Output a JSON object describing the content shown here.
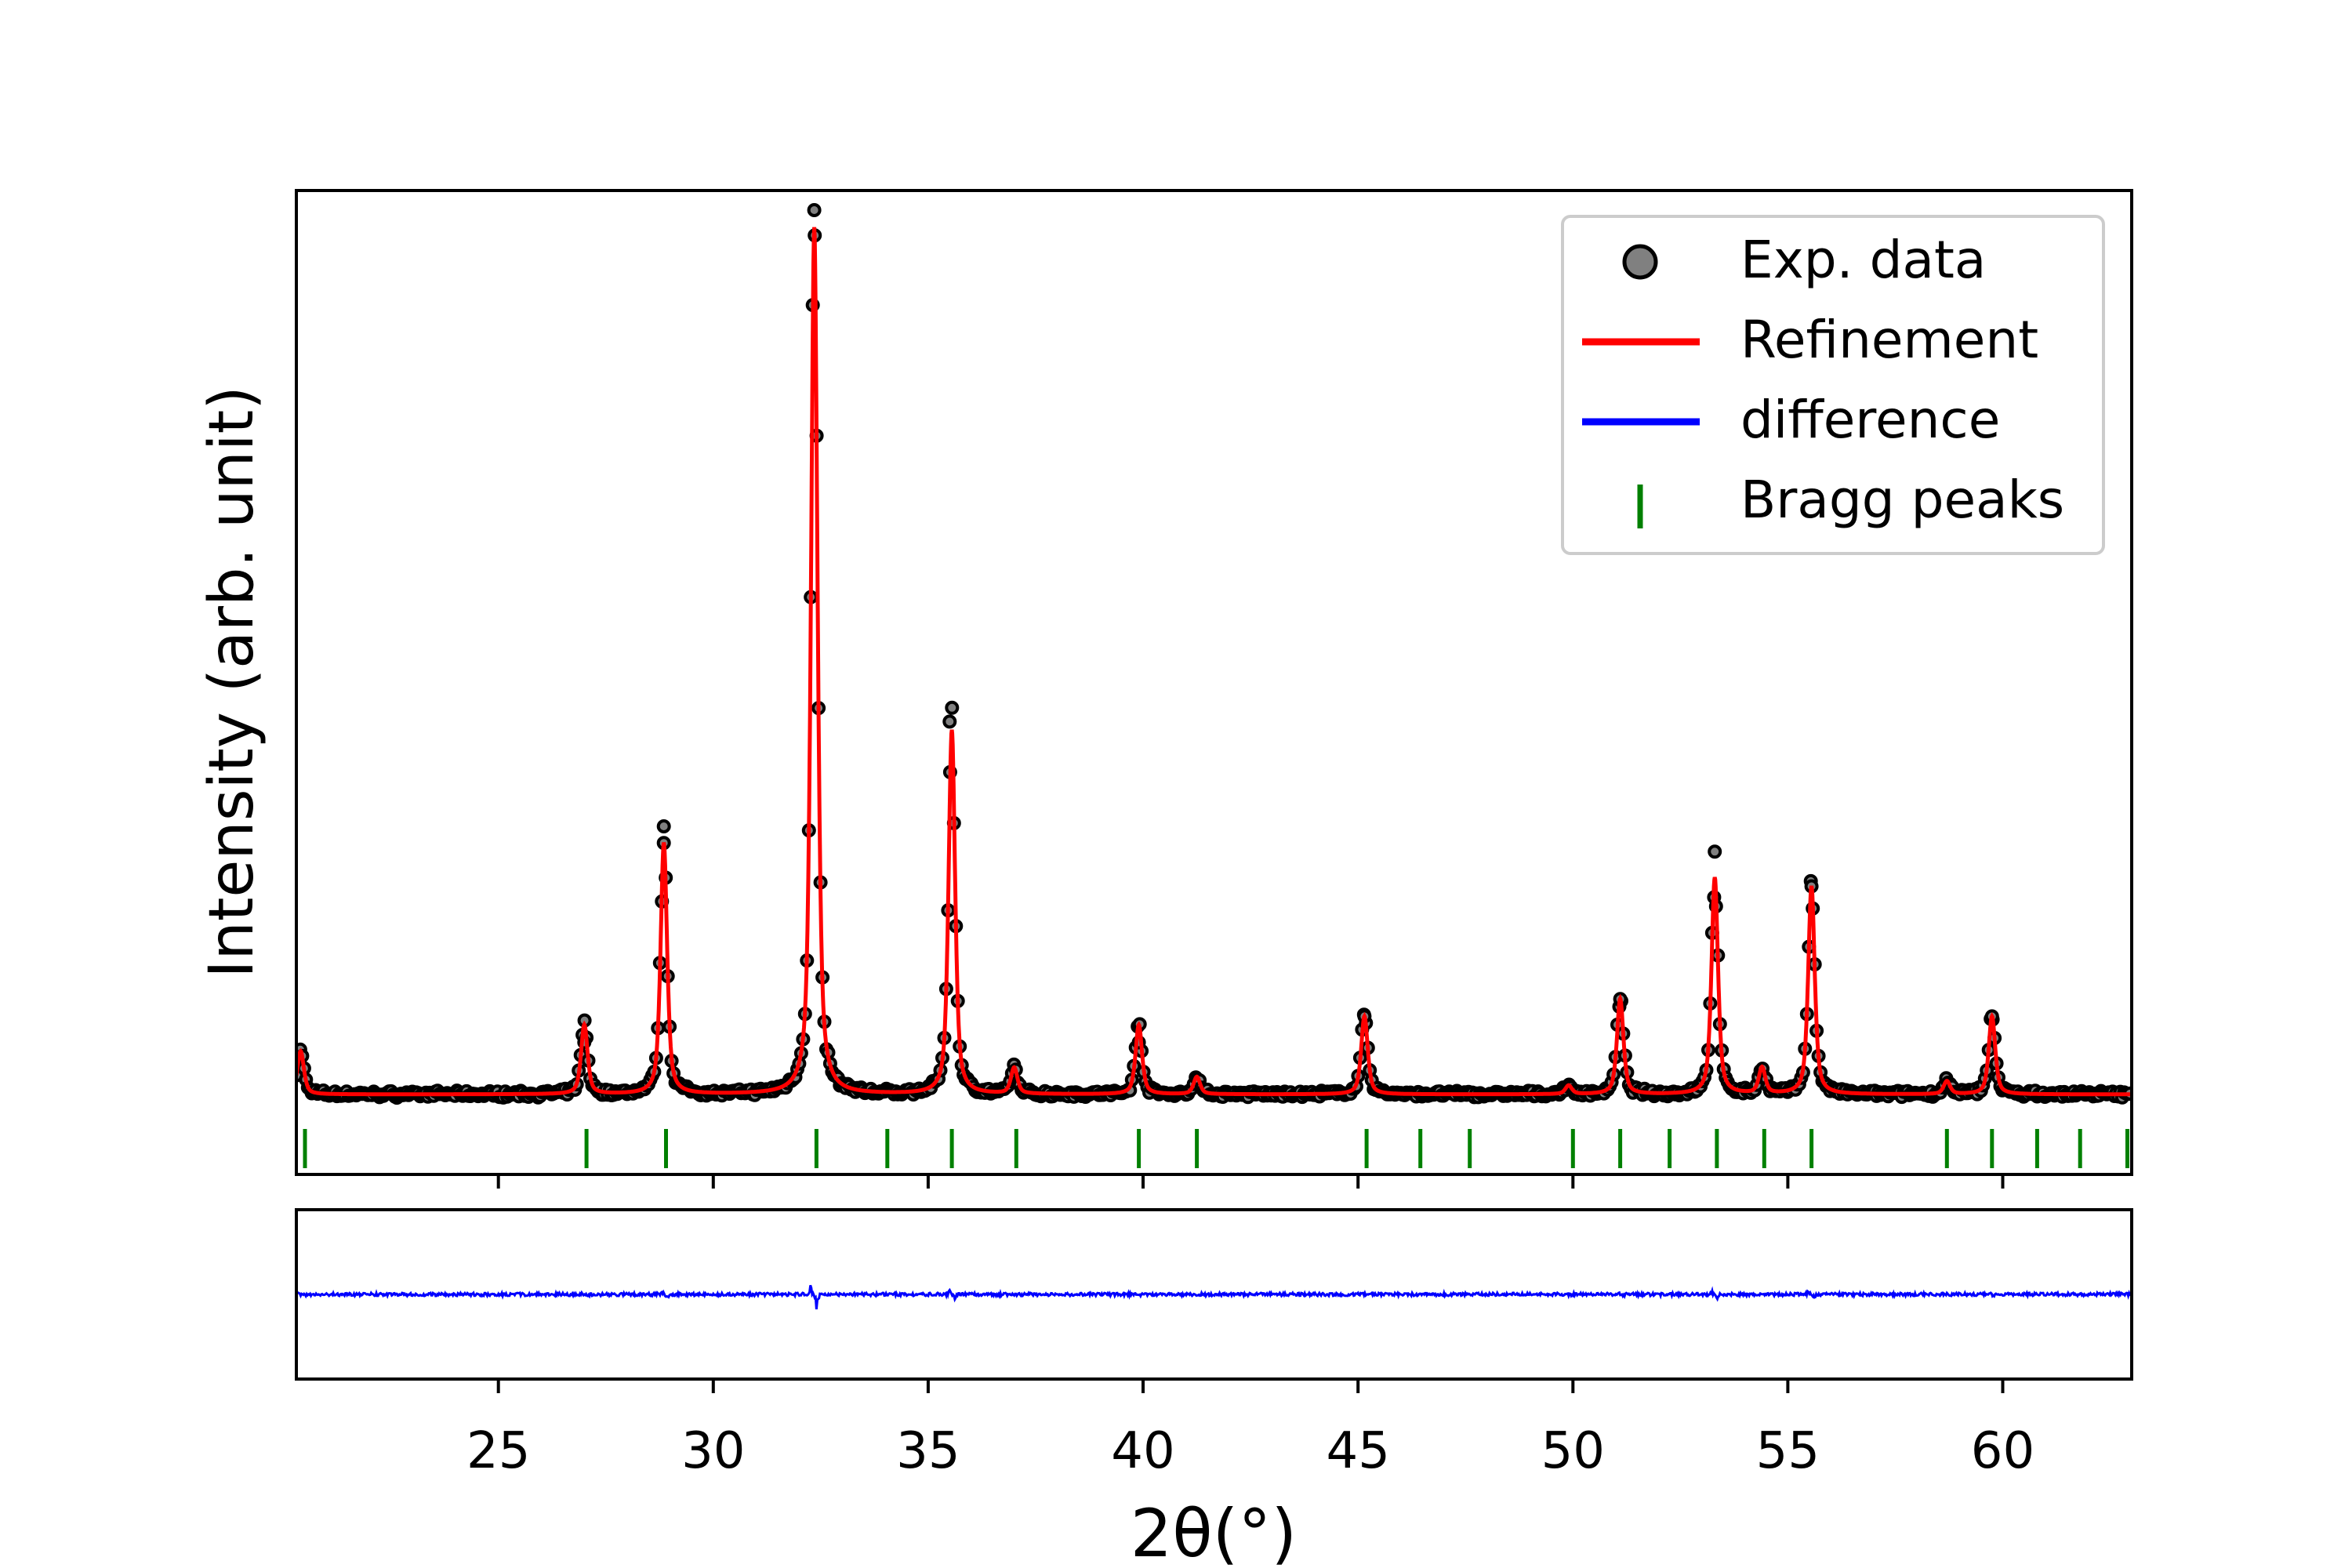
{
  "colors": {
    "exp": "#000000",
    "exp_fill": "#808080",
    "refinement": "#ff0000",
    "difference": "#0000ff",
    "bragg": "#008000",
    "axis": "#000000"
  },
  "chart_data": {
    "type": "line",
    "xlabel": "2θ(°)",
    "ylabel": "Intensity  (arb. unit)",
    "xlim": [
      20.3,
      63.0
    ],
    "xticks": [
      25,
      30,
      35,
      40,
      45,
      50,
      55,
      60
    ],
    "ylim": [
      0,
      1.1
    ],
    "yticks_shown": false,
    "background": 0.02,
    "peaks": [
      {
        "x": 20.4,
        "h": 0.05
      },
      {
        "x": 27.0,
        "h": 0.08
      },
      {
        "x": 28.85,
        "h": 0.29
      },
      {
        "x": 32.35,
        "h": 1.0
      },
      {
        "x": 35.55,
        "h": 0.42
      },
      {
        "x": 37.0,
        "h": 0.03
      },
      {
        "x": 39.9,
        "h": 0.08
      },
      {
        "x": 41.25,
        "h": 0.02
      },
      {
        "x": 45.15,
        "h": 0.09
      },
      {
        "x": 49.9,
        "h": 0.01
      },
      {
        "x": 51.1,
        "h": 0.11
      },
      {
        "x": 53.3,
        "h": 0.25
      },
      {
        "x": 54.4,
        "h": 0.03
      },
      {
        "x": 55.55,
        "h": 0.24
      },
      {
        "x": 58.7,
        "h": 0.015
      },
      {
        "x": 59.75,
        "h": 0.09
      }
    ],
    "exp_maxima": [
      {
        "x": 32.35,
        "y": 1.04
      },
      {
        "x": 35.5,
        "y": 0.45
      },
      {
        "x": 28.85,
        "y": 0.31
      },
      {
        "x": 53.3,
        "y": 0.3
      },
      {
        "x": 55.55,
        "y": 0.26
      },
      {
        "x": 51.1,
        "y": 0.13
      },
      {
        "x": 45.15,
        "y": 0.11
      },
      {
        "x": 59.75,
        "y": 0.11
      },
      {
        "x": 27.0,
        "y": 0.08
      },
      {
        "x": 39.9,
        "y": 0.08
      }
    ],
    "bragg_positions": [
      20.5,
      27.05,
      28.9,
      32.4,
      34.05,
      35.55,
      37.05,
      39.9,
      41.25,
      45.2,
      46.45,
      47.6,
      50.0,
      51.1,
      52.25,
      53.35,
      54.45,
      55.55,
      58.7,
      59.75,
      60.8,
      61.8,
      62.9
    ],
    "series": [
      {
        "name": "Exp. data",
        "kind": "markers"
      },
      {
        "name": "Refinement",
        "kind": "line"
      },
      {
        "name": "difference",
        "kind": "line"
      },
      {
        "name": "Bragg peaks",
        "kind": "ticks"
      }
    ],
    "legend": {
      "position": "top-right"
    }
  }
}
